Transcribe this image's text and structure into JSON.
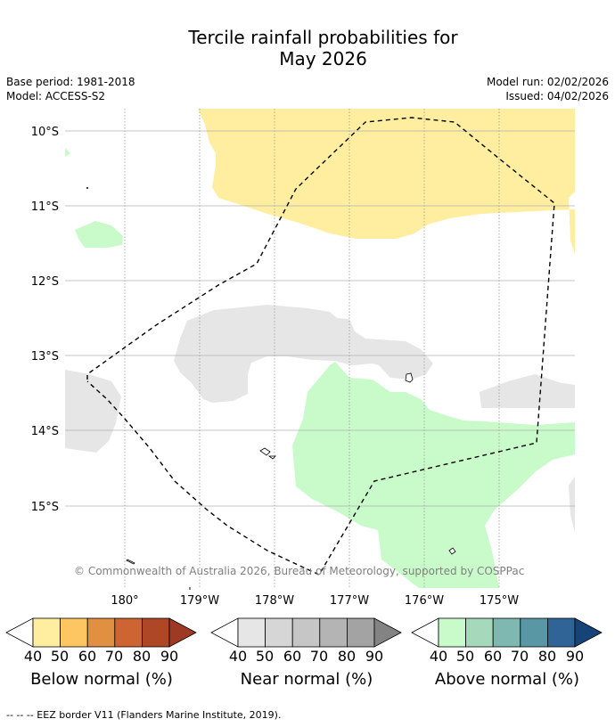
{
  "map": {
    "title_line1": "Tercile rainfall probabilities for",
    "title_line2": "May 2026",
    "base_period": "Base period: 1981-2018",
    "model": "Model: ACCESS-S2",
    "model_run": "Model run: 02/02/2026",
    "issued": "Issued: 04/02/2026",
    "lat_labels": [
      "10°S",
      "11°S",
      "12°S",
      "13°S",
      "14°S",
      "15°S"
    ],
    "lon_labels": [
      "180°",
      "179°W",
      "178°W",
      "177°W",
      "176°W",
      "175°W"
    ],
    "copyright": "© Commonwealth of Australia 2026, Bureau of Meteorology, supported by COSPPac"
  },
  "legend": {
    "ticks": [
      "40",
      "50",
      "60",
      "70",
      "80",
      "90"
    ],
    "below": {
      "label": "Below normal (%)",
      "colors": [
        "#ffeda0",
        "#fec662",
        "#e09040",
        "#cd6432",
        "#ad4726",
        "#9e3a24"
      ]
    },
    "near": {
      "label": "Near normal (%)",
      "colors": [
        "#e6e6e6",
        "#d6d6d6",
        "#c6c6c6",
        "#b4b4b4",
        "#a3a3a3",
        "#838383"
      ]
    },
    "above": {
      "label": "Above normal (%)",
      "colors": [
        "#c9fbca",
        "#a6d9bb",
        "#7fb8b0",
        "#5a97a5",
        "#306496",
        "#174478"
      ]
    }
  },
  "footnote": "--  --  -- EEZ border V11 (Flanders Marine Institute, 2019)."
}
